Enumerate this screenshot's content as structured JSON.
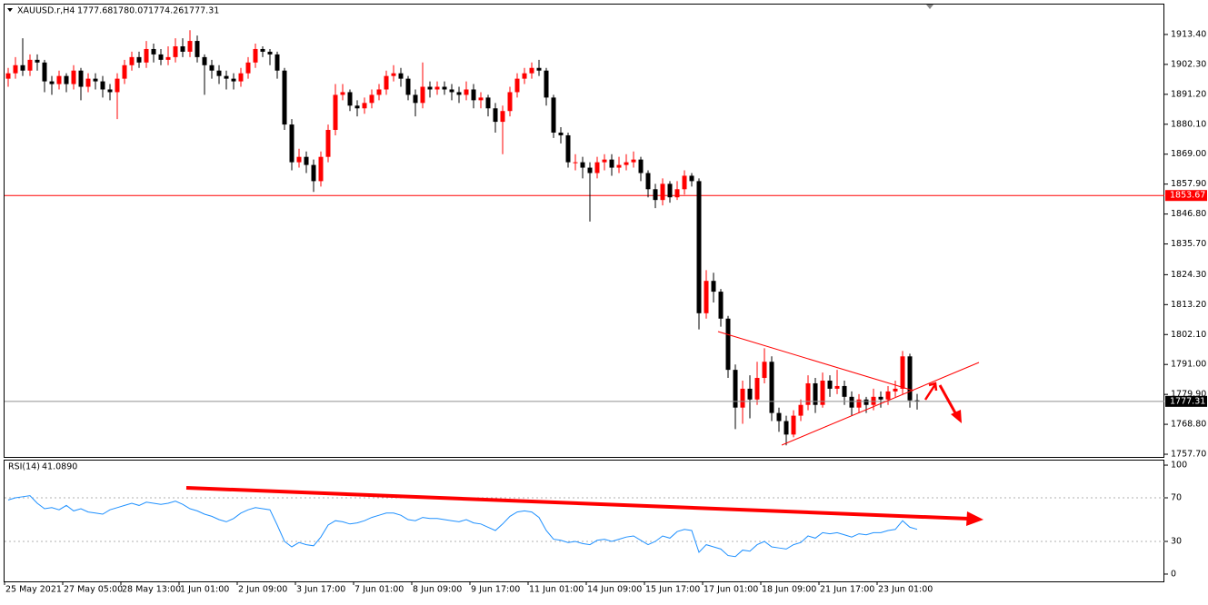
{
  "chart_data": {
    "type": "candlestick",
    "symbol": "XAUUSD.r,H4",
    "up_color": "#ff0000",
    "down_color": "#000000",
    "open": [
      1897,
      1899,
      1902,
      1900,
      1904,
      1903,
      1896,
      1895,
      1898,
      1895,
      1900,
      1894,
      1897,
      1896,
      1893,
      1892,
      1897,
      1902,
      1905,
      1903,
      1908,
      1906,
      1904,
      1905,
      1909,
      1907,
      1911,
      1905,
      1902,
      1900,
      1898,
      1897,
      1896,
      1899,
      1903,
      1908,
      1907,
      1906,
      1900,
      1880,
      1866,
      1868,
      1865,
      1859,
      1868,
      1878,
      1891,
      1892,
      1887,
      1886,
      1888,
      1891,
      1893,
      1898,
      1899,
      1897,
      1891,
      1888,
      1894,
      1893,
      1894,
      1893,
      1892,
      1891,
      1893,
      1889,
      1890,
      1886,
      1881,
      1885,
      1892,
      1897,
      1899,
      1901,
      1900,
      1890,
      1877,
      1876,
      1866,
      1866,
      1864,
      1862,
      1866,
      1867,
      1864,
      1865,
      1866,
      1867,
      1862,
      1856,
      1852,
      1858,
      1853,
      1856,
      1861,
      1859,
      1810,
      1822,
      1818,
      1808,
      1789,
      1775,
      1782,
      1778,
      1786,
      1792,
      1773,
      1770,
      1765,
      1772,
      1776,
      1784,
      1776,
      1785,
      1782,
      1783,
      1779,
      1775,
      1778,
      1776,
      1779,
      1778,
      1781,
      1782,
      1794,
      1777.68
    ],
    "high": [
      1901,
      1905,
      1912,
      1906,
      1906,
      1904,
      1898,
      1900,
      1899,
      1902,
      1901,
      1899,
      1899,
      1898,
      1895,
      1899,
      1904,
      1907,
      1907,
      1911,
      1910,
      1908,
      1909,
      1912,
      1912,
      1915,
      1913,
      1906,
      1904,
      1902,
      1900,
      1899,
      1901,
      1905,
      1910,
      1909,
      1908,
      1907,
      1901,
      1882,
      1871,
      1870,
      1867,
      1870,
      1880,
      1895,
      1895,
      1893,
      1889,
      1890,
      1893,
      1895,
      1900,
      1902,
      1901,
      1898,
      1893,
      1903,
      1896,
      1896,
      1896,
      1895,
      1894,
      1896,
      1895,
      1892,
      1891,
      1888,
      1887,
      1894,
      1899,
      1901,
      1903,
      1904,
      1901,
      1891,
      1879,
      1877,
      1869,
      1868,
      1866,
      1868,
      1869,
      1869,
      1868,
      1869,
      1870,
      1868,
      1863,
      1858,
      1860,
      1859,
      1859,
      1863,
      1862,
      1860,
      1826,
      1825,
      1819,
      1809,
      1791,
      1785,
      1787,
      1792,
      1797,
      1794,
      1775,
      1772,
      1774,
      1778,
      1787,
      1786,
      1788,
      1787,
      1789,
      1785,
      1781,
      1780,
      1779,
      1782,
      1781,
      1783,
      1785,
      1796,
      1795,
      1780.07
    ],
    "low": [
      1894,
      1897,
      1898,
      1898,
      1900,
      1892,
      1891,
      1893,
      1892,
      1893,
      1889,
      1892,
      1893,
      1890,
      1889,
      1882,
      1895,
      1900,
      1901,
      1901,
      1903,
      1902,
      1902,
      1903,
      1905,
      1905,
      1903,
      1891,
      1897,
      1895,
      1893,
      1893,
      1894,
      1897,
      1901,
      1905,
      1902,
      1897,
      1878,
      1863,
      1864,
      1862,
      1855,
      1857,
      1866,
      1876,
      1889,
      1885,
      1883,
      1884,
      1886,
      1889,
      1891,
      1896,
      1894,
      1889,
      1883,
      1886,
      1890,
      1891,
      1891,
      1889,
      1888,
      1889,
      1886,
      1886,
      1883,
      1877,
      1869,
      1883,
      1890,
      1895,
      1897,
      1898,
      1887,
      1875,
      1873,
      1864,
      1863,
      1860,
      1844,
      1860,
      1863,
      1861,
      1862,
      1863,
      1864,
      1859,
      1853,
      1849,
      1850,
      1851,
      1852,
      1854,
      1857,
      1804,
      1808,
      1814,
      1805,
      1786,
      1767,
      1769,
      1771,
      1776,
      1784,
      1770,
      1766,
      1761,
      1764,
      1770,
      1774,
      1773,
      1775,
      1779,
      1780,
      1776,
      1772,
      1773,
      1773,
      1774,
      1775,
      1776,
      1779,
      1780,
      1775,
      1774.26
    ],
    "close": [
      1899,
      1902,
      1900,
      1904,
      1903,
      1896,
      1895,
      1898,
      1895,
      1900,
      1894,
      1897,
      1896,
      1893,
      1892,
      1897,
      1902,
      1905,
      1903,
      1908,
      1906,
      1904,
      1905,
      1909,
      1907,
      1911,
      1905,
      1902,
      1900,
      1898,
      1897,
      1896,
      1899,
      1903,
      1908,
      1907,
      1906,
      1900,
      1880,
      1866,
      1868,
      1865,
      1859,
      1868,
      1878,
      1891,
      1892,
      1887,
      1886,
      1888,
      1891,
      1893,
      1898,
      1899,
      1897,
      1891,
      1888,
      1894,
      1893,
      1894,
      1893,
      1892,
      1891,
      1893,
      1889,
      1890,
      1886,
      1881,
      1885,
      1892,
      1897,
      1899,
      1901,
      1900,
      1890,
      1877,
      1876,
      1866,
      1866,
      1864,
      1862,
      1866,
      1867,
      1864,
      1865,
      1866,
      1867,
      1862,
      1856,
      1852,
      1858,
      1853,
      1856,
      1861,
      1859,
      1810,
      1822,
      1818,
      1808,
      1789,
      1775,
      1782,
      1778,
      1786,
      1792,
      1773,
      1770,
      1765,
      1772,
      1776,
      1784,
      1776,
      1785,
      1782,
      1783,
      1779,
      1775,
      1778,
      1776,
      1779,
      1778,
      1781,
      1782,
      1794,
      1777.68,
      1777.31
    ],
    "ylim": [
      1756.7,
      1924.5
    ],
    "yticks": [
      {
        "value": 1913.4,
        "label": "1913.40"
      },
      {
        "value": 1902.3,
        "label": "1902.30"
      },
      {
        "value": 1891.2,
        "label": "1891.20"
      },
      {
        "value": 1880.1,
        "label": "1880.10"
      },
      {
        "value": 1869,
        "label": "1869.00"
      },
      {
        "value": 1857.9,
        "label": "1857.90"
      },
      {
        "value": 1846.8,
        "label": "1846.80"
      },
      {
        "value": 1835.7,
        "label": "1835.70"
      },
      {
        "value": 1824.3,
        "label": "1824.30"
      },
      {
        "value": 1813.2,
        "label": "1813.20"
      },
      {
        "value": 1802.1,
        "label": "1802.10"
      },
      {
        "value": 1791,
        "label": "1791.00"
      },
      {
        "value": 1779.9,
        "label": "1779.90"
      },
      {
        "value": 1768.8,
        "label": "1768.80"
      },
      {
        "value": 1757.7,
        "label": "1757.70"
      }
    ],
    "hlines": [
      {
        "value": 1853.67,
        "color": "#ff0000"
      }
    ],
    "time_labels": [
      "25 May 2021",
      "27 May 05:00",
      "28 May 13:00",
      "1 Jun 01:00",
      "2 Jun 09:00",
      "3 Jun 17:00",
      "7 Jun 01:00",
      "8 Jun 09:00",
      "9 Jun 17:00",
      "11 Jun 01:00",
      "14 Jun 09:00",
      "15 Jun 17:00",
      "17 Jun 01:00",
      "18 Jun 09:00",
      "21 Jun 17:00",
      "23 Jun 01:00"
    ],
    "rsi": {
      "name": "RSI(14)",
      "color": "#1e90ff",
      "value_label": "41.0890",
      "values": [
        68,
        70,
        71,
        72,
        65,
        60,
        61,
        59,
        63,
        58,
        60,
        57,
        56,
        55,
        59,
        61,
        63,
        65,
        63,
        66,
        65,
        64,
        65,
        67,
        64,
        60,
        58,
        55,
        53,
        50,
        48,
        51,
        56,
        59,
        61,
        60,
        59,
        45,
        30,
        25,
        29,
        27,
        26,
        34,
        45,
        49,
        48,
        46,
        47,
        49,
        52,
        54,
        56,
        56,
        54,
        50,
        49,
        52,
        51,
        51,
        50,
        49,
        48,
        50,
        47,
        46,
        43,
        40,
        46,
        53,
        57,
        58,
        57,
        52,
        40,
        32,
        31,
        29,
        30,
        28,
        27,
        31,
        32,
        30,
        32,
        34,
        35,
        31,
        27,
        30,
        35,
        33,
        39,
        41,
        40,
        20,
        27,
        25,
        23,
        17,
        16,
        22,
        21,
        27,
        30,
        25,
        24,
        23,
        27,
        29,
        35,
        33,
        38,
        37,
        38,
        36,
        34,
        37,
        36,
        38,
        38,
        40,
        41,
        49,
        43,
        41.089
      ],
      "ylim": [
        -6.7,
        104.2
      ],
      "yticks": [
        100,
        70,
        30,
        0
      ],
      "levels": [
        70,
        30
      ]
    }
  }
}
